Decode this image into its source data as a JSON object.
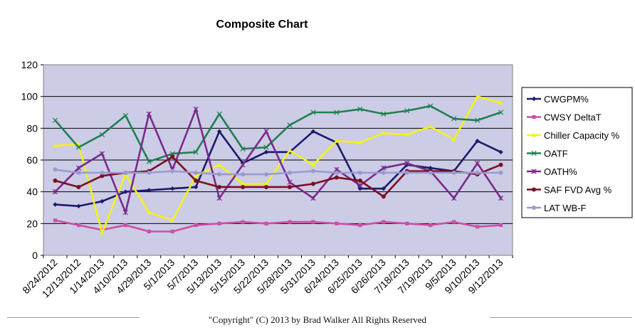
{
  "chart_data": {
    "type": "line",
    "title": "Composite Chart",
    "xlabel": "",
    "ylabel": "",
    "ylim": [
      0,
      120
    ],
    "yticks": [
      0,
      20,
      40,
      60,
      80,
      100,
      120
    ],
    "grid": true,
    "legend_position": "right",
    "plot_background": "#cccce6",
    "categories": [
      "8/24/2012",
      "12/13/2012",
      "1/14/2013",
      "4/10/2013",
      "4/29/2013",
      "5/1/2013",
      "5/7/2013",
      "5/13/2013",
      "5/15/2013",
      "5/22/2013",
      "5/28/2013",
      "5/31/2013",
      "6/24/2013",
      "6/25/2013",
      "6/26/2013",
      "7/18/2013",
      "7/19/2013",
      "9/5/2013",
      "9/10/2013",
      "9/12/2013"
    ],
    "series": [
      {
        "name": "CWGPM%",
        "color": "#1a1a6e",
        "marker": "diamond",
        "values": [
          32,
          31,
          34,
          40,
          41,
          42,
          43,
          78,
          58,
          65,
          65,
          78,
          71,
          42,
          42,
          57,
          55,
          53,
          72,
          65
        ]
      },
      {
        "name": "CWSY DeltaT",
        "color": "#cc4fa8",
        "marker": "square",
        "values": [
          22,
          19,
          16,
          19,
          15,
          15,
          19,
          20,
          21,
          20,
          21,
          21,
          20,
          19,
          21,
          20,
          19,
          21,
          18,
          19
        ]
      },
      {
        "name": "Chiller Capacity %",
        "color": "#f2f21a",
        "marker": "triangle",
        "values": [
          69,
          70,
          14,
          51,
          27,
          22,
          50,
          57,
          45,
          45,
          66,
          57,
          72,
          71,
          77,
          76,
          81,
          73,
          100,
          96
        ]
      },
      {
        "name": "OATF",
        "color": "#1e8050",
        "marker": "x",
        "values": [
          85,
          68,
          76,
          88,
          59,
          64,
          65,
          89,
          67,
          68,
          82,
          90,
          90,
          92,
          89,
          91,
          94,
          86,
          85,
          90
        ]
      },
      {
        "name": "OATH%",
        "color": "#7a2a8a",
        "marker": "star",
        "values": [
          40,
          55,
          64,
          27,
          89,
          54,
          92,
          36,
          57,
          78,
          46,
          36,
          54,
          44,
          55,
          58,
          53,
          36,
          58,
          36
        ]
      },
      {
        "name": "SAF FVD Avg %",
        "color": "#7a1020",
        "marker": "circle",
        "values": [
          47,
          43,
          50,
          52,
          53,
          62,
          47,
          43,
          43,
          43,
          43,
          45,
          49,
          47,
          37,
          53,
          53,
          53,
          51,
          57
        ]
      },
      {
        "name": "LAT WB-F",
        "color": "#9a9ad2",
        "marker": "circle",
        "values": [
          54,
          52,
          52,
          52,
          52,
          53,
          52,
          51,
          51,
          51,
          52,
          53,
          52,
          52,
          52,
          52,
          52,
          52,
          52,
          52
        ]
      }
    ]
  },
  "footer": {
    "copyright": "\"Copyright\" (C) 2013 by Brad Walker  All Rights Reserved"
  }
}
